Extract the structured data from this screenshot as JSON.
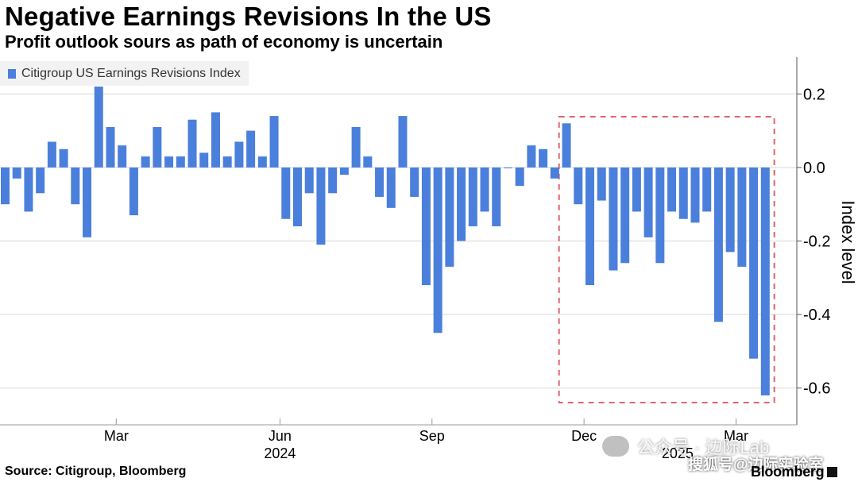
{
  "header": {
    "title": "Negative Earnings Revisions In the US",
    "subtitle": "Profit outlook sours as path of economy is uncertain"
  },
  "footer": {
    "source": "Source: Citigroup, Bloomberg",
    "brand": "Bloomberg"
  },
  "watermark": {
    "text": "公众号 · 边际Lab",
    "text2": "搜狐号@边际实验室"
  },
  "colors": {
    "bar": "#4a7fdc",
    "highlight_box": "#e0646e",
    "grid": "#d9d9d9"
  },
  "chart_data": {
    "type": "bar",
    "title": "Negative Earnings Revisions In the US",
    "subtitle": "Profit outlook sours as path of economy is uncertain",
    "legend": [
      "Citigroup US Earnings Revisions Index"
    ],
    "legend_position": "top-left",
    "ylabel": "Index level",
    "y_axis_side": "right",
    "ylim": [
      -0.7,
      0.3
    ],
    "yticks": [
      0.2,
      0.0,
      -0.2,
      -0.4,
      -0.6
    ],
    "ytick_labels": [
      "0.2",
      "0.0",
      "-0.2",
      "-0.4",
      "-0.6"
    ],
    "grid": "horizontal",
    "x_ticks": [
      {
        "label": "Mar",
        "index": 9.5
      },
      {
        "label": "Jun",
        "index": 23.5
      },
      {
        "label": "Sep",
        "index": 36.5
      },
      {
        "label": "Dec",
        "index": 49.5
      },
      {
        "label": "Mar",
        "index": 62.5
      }
    ],
    "year_labels": [
      {
        "label": "2024",
        "index": 23.5
      },
      {
        "label": "2025",
        "index": 57.5
      }
    ],
    "series": [
      {
        "name": "Citigroup US Earnings Revisions Index",
        "values": [
          -0.1,
          -0.03,
          -0.12,
          -0.07,
          0.07,
          0.05,
          -0.1,
          -0.19,
          0.22,
          0.11,
          0.06,
          -0.13,
          0.03,
          0.11,
          0.03,
          0.03,
          0.13,
          0.04,
          0.15,
          0.03,
          0.07,
          0.1,
          0.03,
          0.14,
          -0.14,
          -0.16,
          -0.07,
          -0.21,
          -0.07,
          -0.02,
          0.11,
          0.03,
          -0.08,
          -0.11,
          0.14,
          -0.08,
          -0.32,
          -0.45,
          -0.27,
          -0.2,
          -0.16,
          -0.12,
          -0.16,
          0.0,
          -0.05,
          0.06,
          0.05,
          -0.03,
          0.12,
          -0.1,
          -0.32,
          -0.09,
          -0.28,
          -0.26,
          -0.12,
          -0.19,
          -0.26,
          -0.12,
          -0.14,
          -0.15,
          -0.12,
          -0.42,
          -0.23,
          -0.27,
          -0.52,
          -0.62
        ]
      }
    ],
    "highlight_range": [
      48,
      65
    ]
  }
}
